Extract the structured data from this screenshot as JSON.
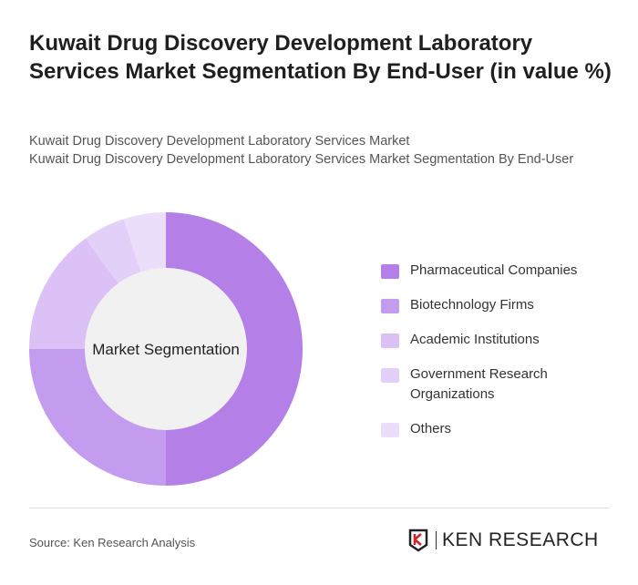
{
  "title": "Kuwait Drug Discovery Development Laboratory Services Market Segmentation By End-User (in value %)",
  "subtitle1": "Kuwait Drug Discovery Development Laboratory Services Market",
  "subtitle2": "Kuwait Drug Discovery Development Laboratory Services Market Segmentation By End-User",
  "source": "Source: Ken Research Analysis",
  "logo_text": "KEN RESEARCH",
  "chart_data": {
    "type": "pie",
    "center_label": "Market Segmentation",
    "categories": [
      "Pharmaceutical Companies",
      "Biotechnology Firms",
      "Academic Institutions",
      "Government Research Organizations",
      "Others"
    ],
    "values": [
      50,
      25,
      15,
      5,
      5
    ],
    "colors": [
      "#b57fe8",
      "#c49cef",
      "#dbc1f5",
      "#e3d0f8",
      "#ebdefa"
    ],
    "legend_position": "right"
  }
}
